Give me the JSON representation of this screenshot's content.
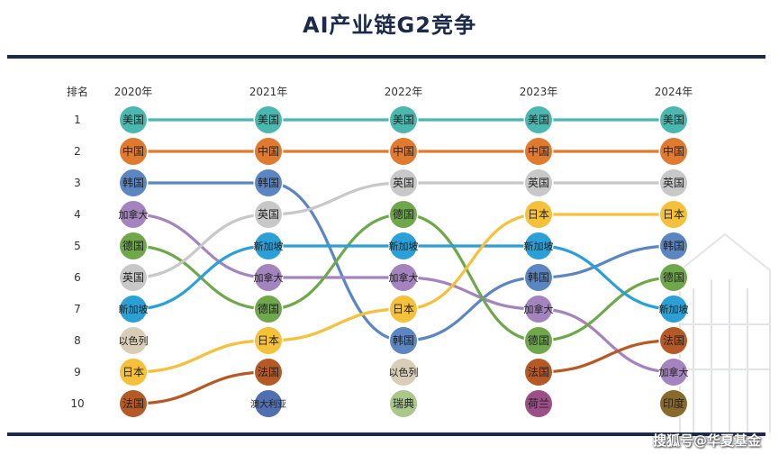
{
  "title": "AI产业链G2竞争",
  "watermark": "搜狐号@华夏基金",
  "chart_data": {
    "type": "bump",
    "rank_header": "排名",
    "ranks": [
      "1",
      "2",
      "3",
      "4",
      "5",
      "6",
      "7",
      "8",
      "9",
      "10"
    ],
    "years": [
      "2020年",
      "2021年",
      "2022年",
      "2023年",
      "2024年"
    ],
    "rankings": [
      [
        "美国",
        "中国",
        "韩国",
        "加拿大",
        "德国",
        "英国",
        "新加坡",
        "以色列",
        "日本",
        "法国"
      ],
      [
        "美国",
        "中国",
        "韩国",
        "英国",
        "新加坡",
        "加拿大",
        "德国",
        "日本",
        "法国",
        "澳大利亚"
      ],
      [
        "美国",
        "中国",
        "英国",
        "德国",
        "新加坡",
        "加拿大",
        "日本",
        "韩国",
        "以色列",
        "瑞典"
      ],
      [
        "美国",
        "中国",
        "英国",
        "日本",
        "新加坡",
        "韩国",
        "加拿大",
        "德国",
        "法国",
        "荷兰"
      ],
      [
        "美国",
        "中国",
        "英国",
        "日本",
        "韩国",
        "德国",
        "新加坡",
        "法国",
        "加拿大",
        "印度"
      ]
    ],
    "colors": {
      "美国": "#4bb8b0",
      "中国": "#e07a2e",
      "韩国": "#5b86c2",
      "加拿大": "#a484bf",
      "德国": "#6fa84a",
      "英国": "#c8c8c8",
      "新加坡": "#2aa0d6",
      "以色列": "#d8cdb6",
      "日本": "#f5c03a",
      "法国": "#b55a26",
      "澳大利亚": "#4f6fb0",
      "瑞典": "#a9c98b",
      "荷兰": "#9b4f86",
      "印度": "#8a6a2c"
    }
  }
}
